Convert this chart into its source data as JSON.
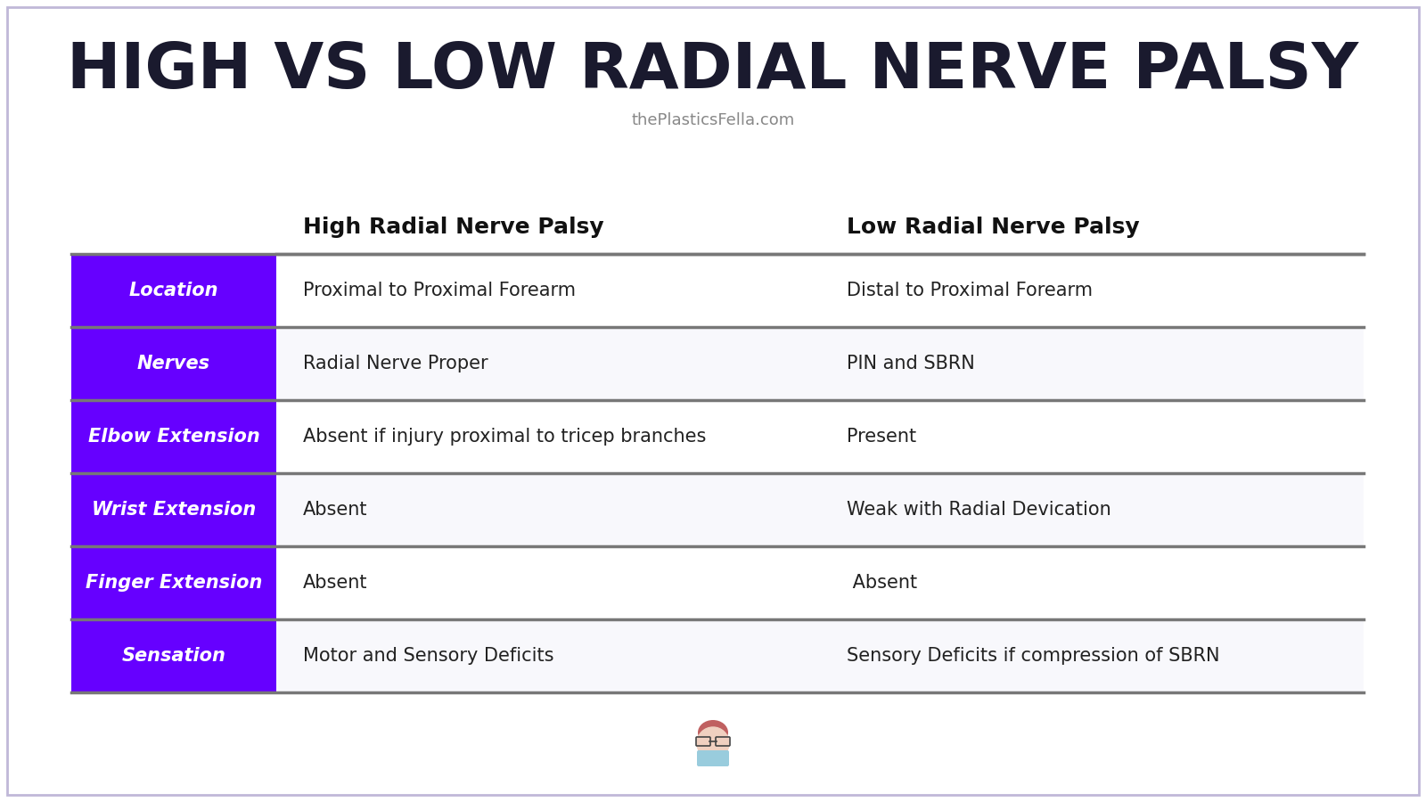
{
  "title": "HIGH VS LOW RADIAL NERVE PALSY",
  "subtitle": "thePlasticsFella.com",
  "col_headers": [
    "High Radial Nerve Palsy",
    "Low Radial Nerve Palsy"
  ],
  "row_labels": [
    "Location",
    "Nerves",
    "Elbow Extension",
    "Wrist Extension",
    "Finger Extension",
    "Sensation"
  ],
  "col1_data": [
    "Proximal to Proximal Forearm",
    "Radial Nerve Proper",
    "Absent if injury proximal to tricep branches",
    "Absent",
    "Absent",
    "Motor and Sensory Deficits"
  ],
  "col2_data": [
    "Distal to Proximal Forearm",
    "PIN and SBRN",
    "Present",
    "Weak with Radial Devication",
    " Absent",
    "Sensory Deficits if compression of SBRN"
  ],
  "purple_color": "#6600FF",
  "bg_color": "#FFFFFF",
  "separator_color": "#777777",
  "title_color": "#1a1a2e",
  "subtitle_color": "#888888",
  "header_text_color": "#111111",
  "cell_text_color": "#222222",
  "label_text_color": "#FFFFFF",
  "border_color": "#C0B8D8",
  "row_bg_white": "#FFFFFF",
  "row_bg_light": "#F8F8FC"
}
